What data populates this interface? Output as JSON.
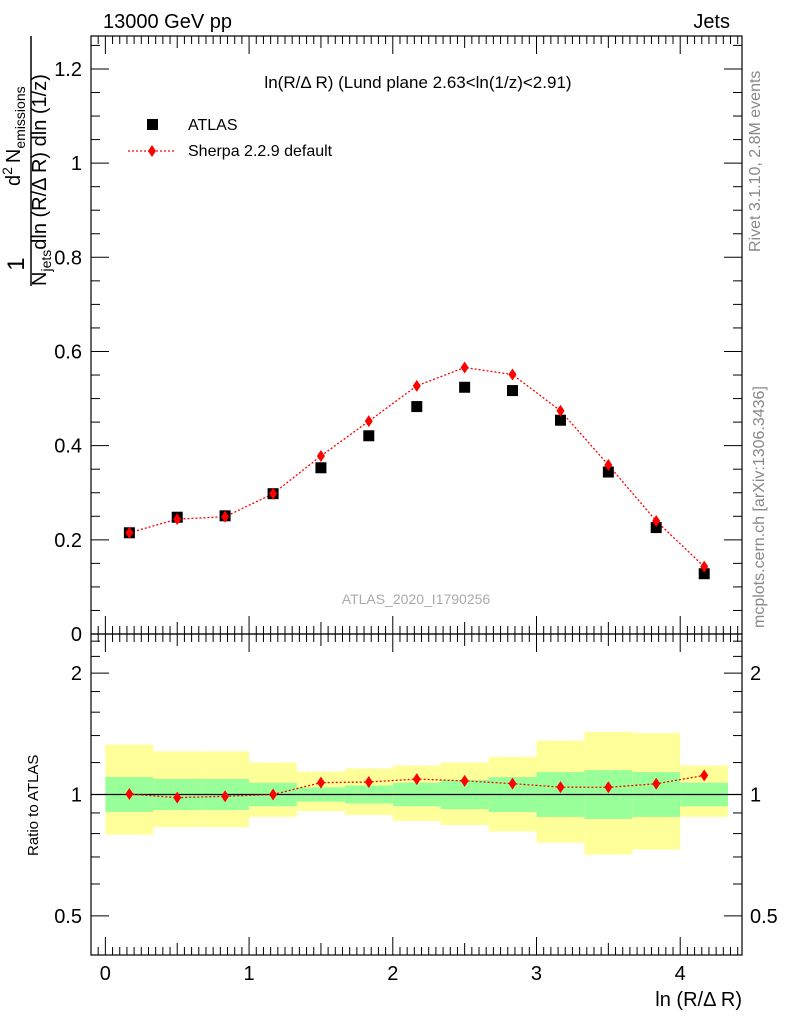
{
  "header": {
    "left": "13000 GeV pp",
    "right": "Jets"
  },
  "side_text": {
    "rivet": "Rivet 3.1.10,  2.8M events",
    "mcplots": "mcplots.cern.ch [arXiv:1306.3436]"
  },
  "watermark": "ATLAS_2020_I1790256",
  "chart_data": [
    {
      "type": "scatter",
      "panel": "main",
      "title": "ln(R/Δ R) (Lund plane 2.63<ln(1/z)<2.91)",
      "ylabel": {
        "one": "1",
        "njets": "N",
        "njets_sub": "jets",
        "dln": "dln (R/Δ R) dln (1/z)",
        "d2": "d",
        "d2_sup": "2",
        "nemis": "N",
        "nemis_sub": "emissions"
      },
      "xlim": [
        -0.1,
        4.43
      ],
      "ylim": [
        0,
        1.27
      ],
      "yticks": [
        0,
        0.2,
        0.4,
        0.6,
        0.8,
        1,
        1.2
      ],
      "ytick_labels": [
        "0",
        "0.2",
        "0.4",
        "0.6",
        "0.8",
        "1",
        "1.2"
      ],
      "legend_position": "top-left",
      "series": [
        {
          "name": "ATLAS",
          "color": "#000000",
          "marker": "square",
          "x": [
            0.167,
            0.5,
            0.833,
            1.167,
            1.5,
            1.833,
            2.167,
            2.5,
            2.833,
            3.167,
            3.5,
            3.833,
            4.167
          ],
          "y": [
            0.215,
            0.248,
            0.251,
            0.298,
            0.353,
            0.421,
            0.483,
            0.524,
            0.517,
            0.454,
            0.344,
            0.226,
            0.128
          ]
        },
        {
          "name": "Sherpa 2.2.9 default",
          "color": "#ff0000",
          "marker": "diamond",
          "line": "dotted",
          "x": [
            0.167,
            0.5,
            0.833,
            1.167,
            1.5,
            1.833,
            2.167,
            2.5,
            2.833,
            3.167,
            3.5,
            3.833,
            4.167
          ],
          "y": [
            0.215,
            0.244,
            0.249,
            0.298,
            0.378,
            0.452,
            0.527,
            0.566,
            0.551,
            0.474,
            0.359,
            0.24,
            0.143
          ]
        }
      ]
    },
    {
      "type": "line",
      "panel": "ratio",
      "ylabel": "Ratio to ATLAS",
      "xlabel": "ln (R/Δ R)",
      "xlim": [
        -0.1,
        4.43
      ],
      "ylim": [
        0.4,
        2.5
      ],
      "log_y": true,
      "yticks": [
        0.5,
        1,
        2
      ],
      "ytick_labels": [
        "0.5",
        "1",
        "2"
      ],
      "xticks": [
        0,
        1,
        2,
        3,
        4
      ],
      "xtick_labels": [
        "0",
        "1",
        "2",
        "3",
        "4"
      ],
      "bins": [
        0,
        0.333,
        0.667,
        1,
        1.333,
        1.667,
        2,
        2.333,
        2.667,
        3,
        3.333,
        3.667,
        4,
        4.333
      ],
      "band_outer": {
        "color": "#ffff99",
        "lo": [
          0.795,
          0.83,
          0.83,
          0.88,
          0.91,
          0.89,
          0.86,
          0.84,
          0.81,
          0.76,
          0.71,
          0.73,
          0.88
        ],
        "hi": [
          1.33,
          1.28,
          1.28,
          1.2,
          1.14,
          1.16,
          1.18,
          1.2,
          1.24,
          1.36,
          1.43,
          1.42,
          1.18
        ]
      },
      "band_inner": {
        "color": "#99ff99",
        "lo": [
          0.905,
          0.915,
          0.915,
          0.935,
          0.96,
          0.95,
          0.935,
          0.92,
          0.905,
          0.88,
          0.87,
          0.88,
          0.935
        ]
      },
      "series": [
        {
          "name": "Sherpa 2.2.9 default",
          "color": "#ff0000",
          "marker": "diamond",
          "line": "dotted",
          "x": [
            0.167,
            0.5,
            0.833,
            1.167,
            1.5,
            1.833,
            2.167,
            2.5,
            2.833,
            3.167,
            3.5,
            3.833,
            4.167
          ],
          "y": [
            1.003,
            0.982,
            0.99,
            1.0,
            1.07,
            1.074,
            1.092,
            1.081,
            1.064,
            1.043,
            1.042,
            1.063,
            1.115
          ]
        }
      ]
    }
  ]
}
